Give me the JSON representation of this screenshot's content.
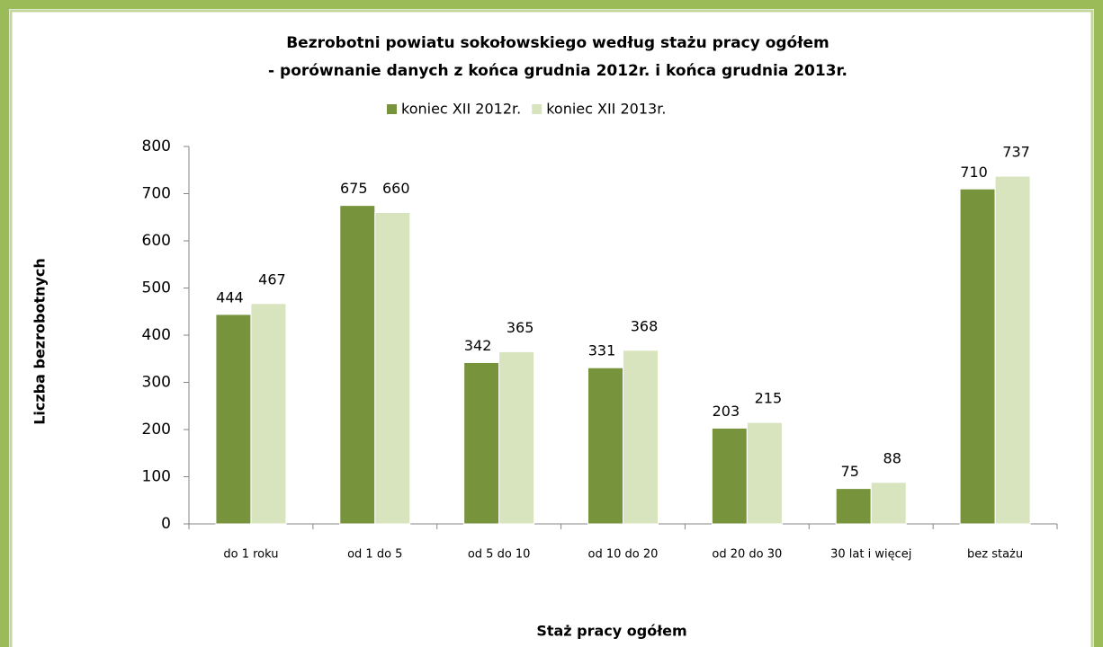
{
  "chart_data": {
    "type": "bar",
    "title": "Bezrobotni powiatu sokołowskiego według stażu pracy ogółem",
    "subtitle": "- porównanie danych z końca grudnia 2012r. i końca grudnia 2013r.",
    "x_label": "Staż pracy ogółem",
    "y_label": "Liczba bezrobotnych",
    "categories": [
      "do 1 roku",
      "od 1 do 5",
      "od 5 do 10",
      "od 10 do 20",
      "od 20 do 30",
      "30 lat i więcej",
      "bez stażu"
    ],
    "series": [
      {
        "name": "koniec XII 2012r.",
        "color": "#77933c",
        "values": [
          444,
          675,
          342,
          331,
          203,
          75,
          710
        ]
      },
      {
        "name": "koniec XII 2013r.",
        "color": "#d7e4bd",
        "values": [
          467,
          660,
          365,
          368,
          215,
          88,
          737
        ]
      }
    ],
    "ylim": [
      0,
      800
    ],
    "yticks": [
      0,
      100,
      200,
      300,
      400,
      500,
      600,
      700,
      800
    ],
    "legend": "top"
  }
}
